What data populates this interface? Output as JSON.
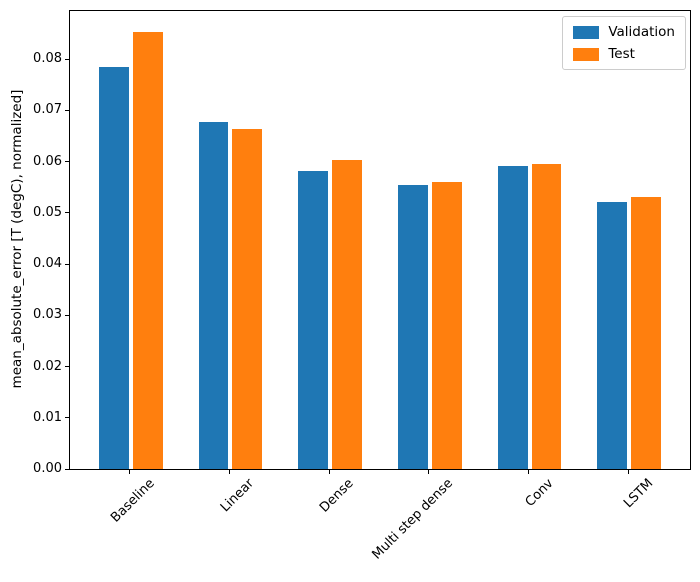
{
  "chart_data": {
    "type": "bar",
    "title": "",
    "xlabel": "",
    "ylabel": "mean_absolute_error [T (degC), normalized]",
    "categories": [
      "Baseline",
      "Linear",
      "Dense",
      "Multi step dense",
      "Conv",
      "LSTM"
    ],
    "series": [
      {
        "name": "Validation",
        "color": "#1f77b4",
        "values": [
          0.0785,
          0.0678,
          0.0582,
          0.0555,
          0.0592,
          0.0521
        ]
      },
      {
        "name": "Test",
        "color": "#ff7f0e",
        "values": [
          0.0853,
          0.0663,
          0.0603,
          0.056,
          0.0595,
          0.0531
        ]
      }
    ],
    "ylim": [
      0,
      0.0894
    ],
    "yticks": [
      0,
      0.01,
      0.02,
      0.03,
      0.04,
      0.05,
      0.06,
      0.07,
      0.08
    ],
    "ytick_labels": [
      "0.00",
      "0.01",
      "0.02",
      "0.03",
      "0.04",
      "0.05",
      "0.06",
      "0.07",
      "0.08"
    ],
    "bar_width": 0.3,
    "group_offset": 0.17,
    "x_rotation": 45,
    "grid": false,
    "legend": {
      "position": "upper right",
      "entries": [
        "Validation",
        "Test"
      ]
    }
  }
}
